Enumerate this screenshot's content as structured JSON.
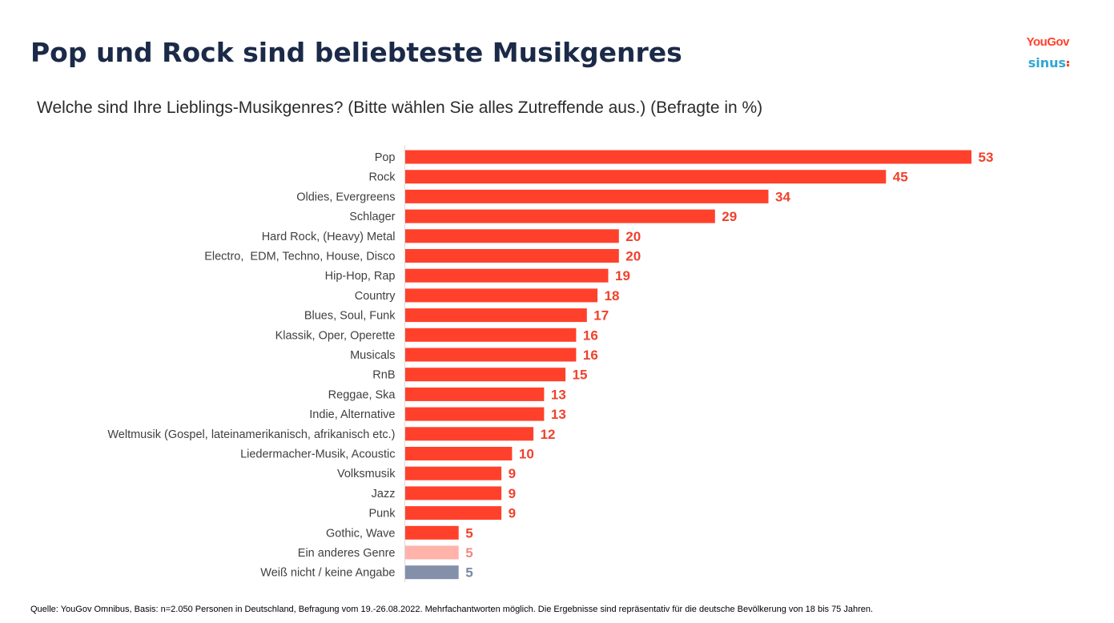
{
  "header": {
    "title": "Pop und Rock sind beliebteste Musikgenres",
    "subtitle": "Welche sind Ihre Lieblings-Musikgenres? (Bitte wählen Sie alles Zutreffende aus.) (Befragte in %)"
  },
  "logos": {
    "yougov": "YouGov",
    "sinus": "sinus"
  },
  "footer": {
    "source": "Quelle: YouGov Omnibus, Basis: n=2.050 Personen in Deutschland, Befragung vom 19.-26.08.2022. Mehrfachantworten möglich. Die Ergebnisse sind repräsentativ für die deutsche Bevölkerung von 18 bis 75 Jahren."
  },
  "colors": {
    "primary": "#ff412c",
    "other": "#ffb3aa",
    "unknown": "#8490aa",
    "primary_label": "#f0412c",
    "other_label": "#f08a80",
    "unknown_label": "#7a88a4"
  },
  "chart_data": {
    "type": "bar",
    "orientation": "horizontal",
    "title": "Pop und Rock sind beliebteste Musikgenres",
    "subtitle": "Welche sind Ihre Lieblings-Musikgenres? (Bitte wählen Sie alles Zutreffende aus.) (Befragte in %)",
    "xlabel": "",
    "ylabel": "",
    "xlim": [
      0,
      53
    ],
    "grid": false,
    "legend": "none",
    "categories": [
      "Pop",
      "Rock",
      "Oldies, Evergreens",
      "Schlager",
      "Hard Rock, (Heavy) Metal",
      "Electro,  EDM, Techno, House, Disco",
      "Hip-Hop, Rap",
      "Country",
      "Blues, Soul, Funk",
      "Klassik, Oper, Operette",
      "Musicals",
      "RnB",
      "Reggae, Ska",
      "Indie, Alternative",
      "Weltmusik (Gospel, lateinamerikanisch, afrikanisch etc.)",
      "Liedermacher-Musik, Acoustic",
      "Volksmusik",
      "Jazz",
      "Punk",
      "Gothic, Wave",
      "Ein anderes Genre",
      "Weiß nicht / keine Angabe"
    ],
    "values": [
      53,
      45,
      34,
      29,
      20,
      20,
      19,
      18,
      17,
      16,
      16,
      15,
      13,
      13,
      12,
      10,
      9,
      9,
      9,
      5,
      5,
      5
    ],
    "value_labels": [
      "53",
      "45",
      "34",
      "29",
      "20",
      "20",
      "19",
      "18",
      "17",
      "16",
      "16",
      "15",
      "13",
      "13",
      "12",
      "10",
      "9",
      "9",
      "9",
      "5",
      "5",
      "5"
    ],
    "bar_colors": [
      "primary",
      "primary",
      "primary",
      "primary",
      "primary",
      "primary",
      "primary",
      "primary",
      "primary",
      "primary",
      "primary",
      "primary",
      "primary",
      "primary",
      "primary",
      "primary",
      "primary",
      "primary",
      "primary",
      "primary",
      "other",
      "unknown"
    ]
  }
}
